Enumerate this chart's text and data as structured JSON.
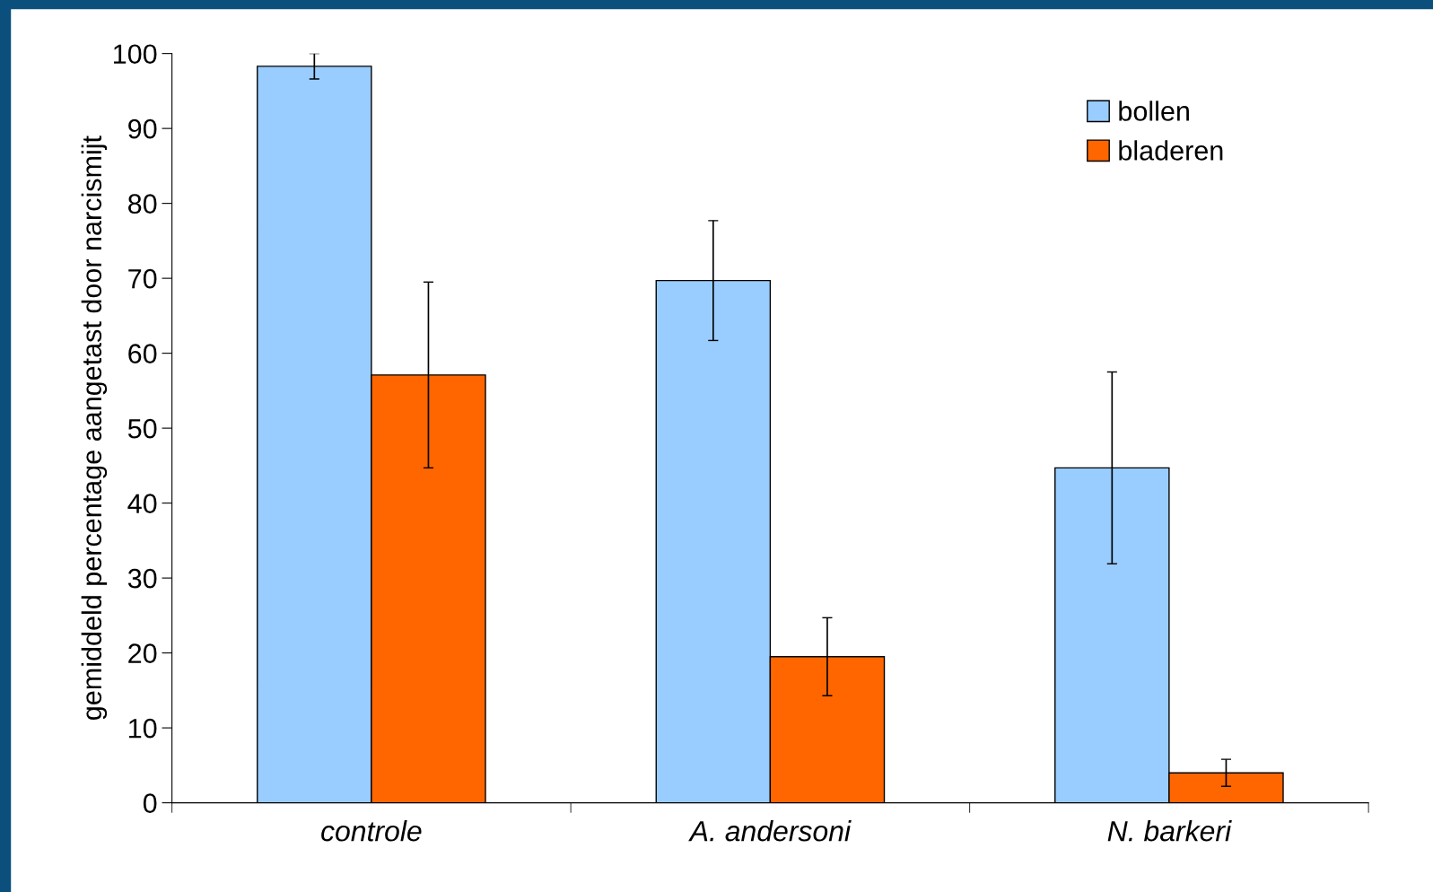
{
  "chart_data": {
    "type": "bar",
    "ylabel": "gemiddeld percentage aangetast door narcismijt",
    "categories": [
      "controle",
      "A. andersoni",
      "N. barkeri"
    ],
    "series": [
      {
        "name": "bollen",
        "color": "#99ccff",
        "values": [
          98.3,
          69.7,
          44.7
        ],
        "errors": [
          1.7,
          8,
          12.8
        ]
      },
      {
        "name": "bladeren",
        "color": "#ff6600",
        "values": [
          57.1,
          19.5,
          4.0
        ],
        "errors": [
          12.4,
          5.2,
          1.8
        ]
      }
    ],
    "ylim": [
      0,
      100
    ],
    "yticks": [
      0,
      10,
      20,
      30,
      40,
      50,
      60,
      70,
      80,
      90,
      100
    ],
    "grid": false,
    "legend": "top right"
  }
}
